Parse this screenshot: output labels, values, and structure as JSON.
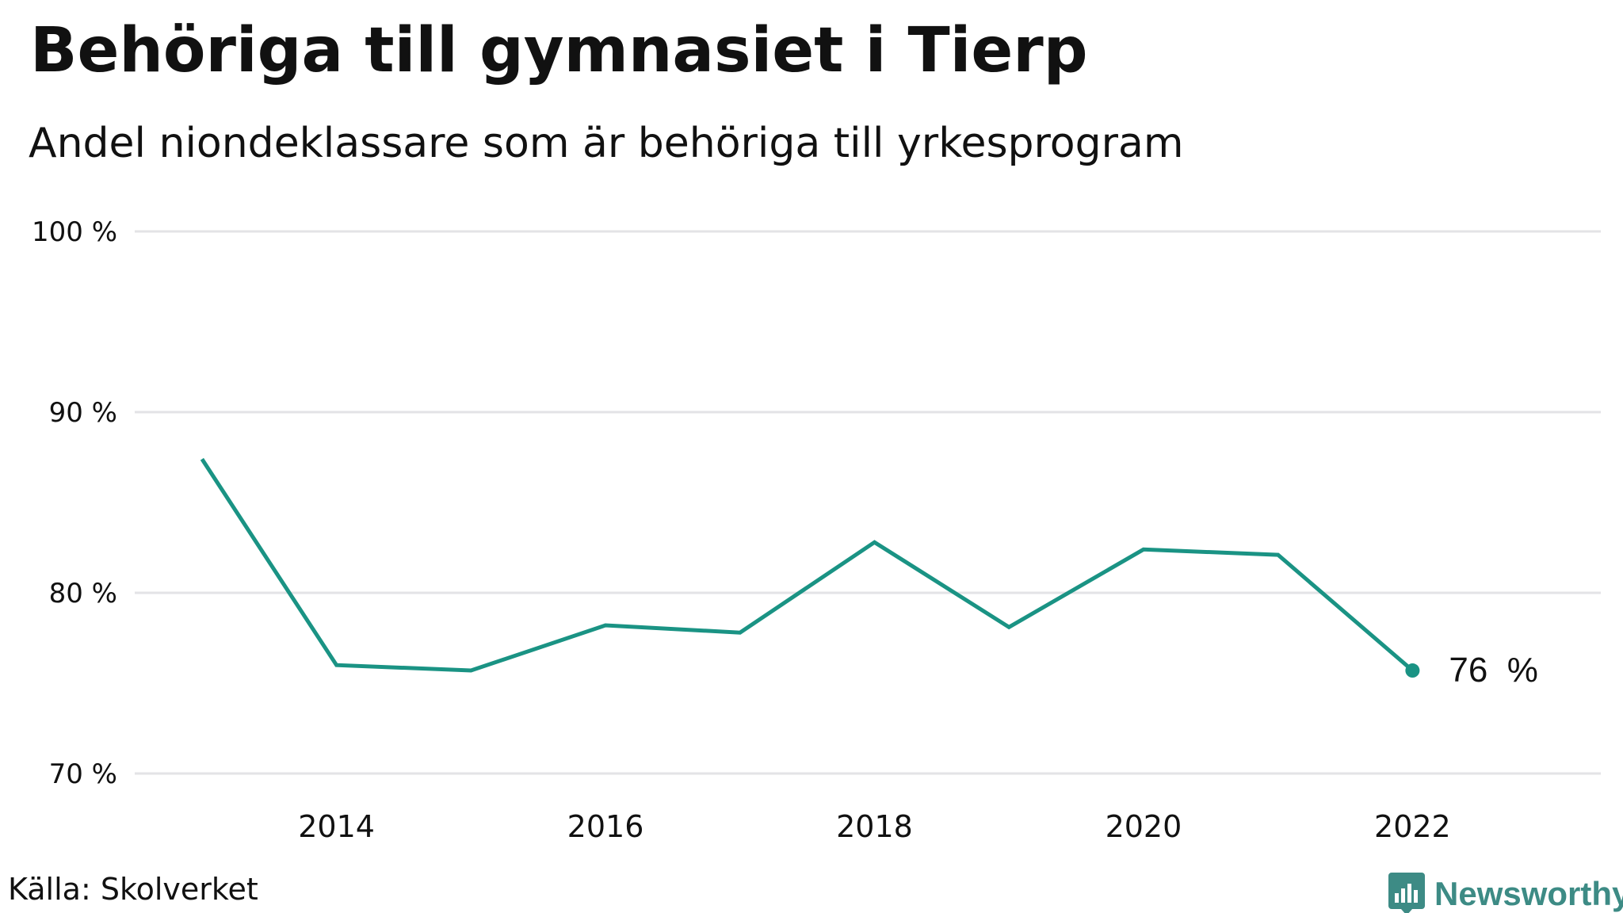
{
  "chart_data": {
    "type": "line",
    "title": "Behöriga till gymnasiet i Tierp",
    "subtitle": "Andel niondeklassare som är behöriga till yrkesprogram",
    "xlabel": "",
    "ylabel": "",
    "x": [
      2013,
      2014,
      2015,
      2016,
      2017,
      2018,
      2019,
      2020,
      2021,
      2022
    ],
    "series": [
      {
        "values": [
          87.4,
          76.0,
          75.7,
          78.2,
          77.8,
          82.8,
          78.1,
          82.4,
          82.1,
          75.7
        ]
      }
    ],
    "xlim": [
      2012.5,
      2023.4
    ],
    "ylim": [
      70,
      100
    ],
    "yticks": [
      70,
      80,
      90,
      100
    ],
    "ytick_labels": [
      "70 %",
      "80 %",
      "90 %",
      "100 %"
    ],
    "xticks": [
      2014,
      2016,
      2018,
      2020,
      2022
    ],
    "xtick_labels": [
      "2014",
      "2016",
      "2018",
      "2020",
      "2022"
    ],
    "end_label": "76  %",
    "grid": true,
    "line_color": "#1a9384",
    "grid_color": "#e3e3e6"
  },
  "footer": {
    "source": "Källa: Skolverket",
    "brand": "Newsworthy",
    "brand_icon": "newsworthy-logo-icon",
    "brand_color": "#3d8b85"
  }
}
